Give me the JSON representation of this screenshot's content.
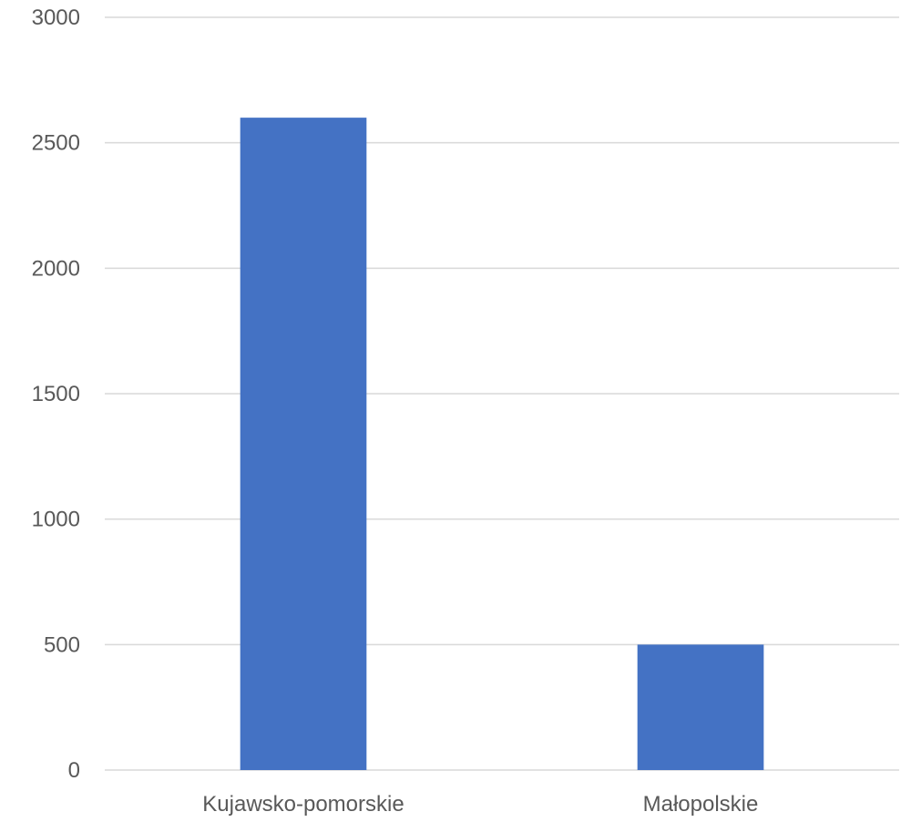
{
  "chart_data": {
    "type": "bar",
    "categories": [
      "Kujawsko-pomorskie",
      "Małopolskie"
    ],
    "series": [
      {
        "values": [
          2600,
          500
        ],
        "color": "#4472c4"
      }
    ],
    "ylim": [
      0,
      3000
    ],
    "y_ticks": [
      "0",
      "500",
      "1000",
      "1500",
      "2000",
      "2500",
      "3000"
    ],
    "grid": true,
    "legend": "none",
    "title": "",
    "xlabel": "",
    "ylabel": ""
  }
}
